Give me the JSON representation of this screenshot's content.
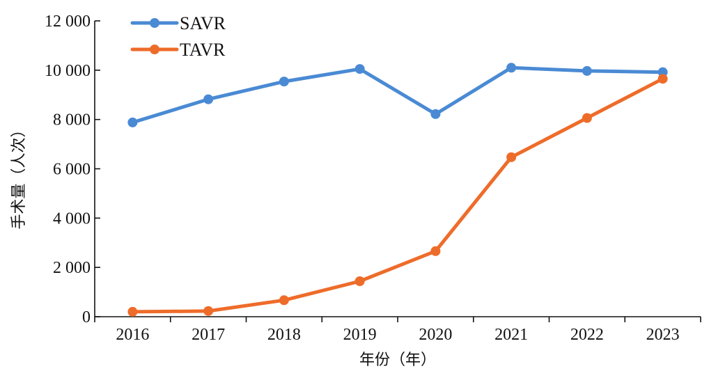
{
  "chart_data": {
    "type": "line",
    "categories": [
      "2016",
      "2017",
      "2018",
      "2019",
      "2020",
      "2021",
      "2022",
      "2023"
    ],
    "series": [
      {
        "name": "SAVR",
        "color": "#4a8ad4",
        "values": [
          7880,
          8820,
          9540,
          10050,
          8220,
          10100,
          9970,
          9920
        ]
      },
      {
        "name": "TAVR",
        "color": "#ee6c2a",
        "values": [
          200,
          230,
          670,
          1440,
          2660,
          6470,
          8060,
          9650
        ]
      }
    ],
    "xlabel": "年份（年）",
    "ylabel": "手术量（人次）",
    "ylim": [
      0,
      12000
    ],
    "yticks": [
      0,
      2000,
      4000,
      6000,
      8000,
      10000,
      12000
    ],
    "ytick_labels": [
      "0",
      "2 000",
      "4 000",
      "6 000",
      "8 000",
      "10 000",
      "12 000"
    ],
    "grid": false,
    "legend_position": "top-left"
  }
}
